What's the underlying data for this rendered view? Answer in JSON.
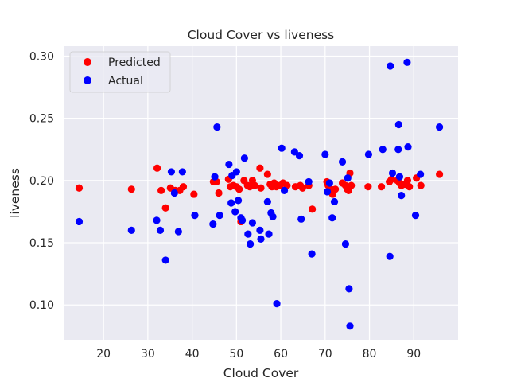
{
  "chart_data": {
    "type": "scatter",
    "title": "Cloud Cover vs liveness",
    "xlabel": "Cloud Cover",
    "ylabel": "liveness",
    "xlim": [
      11,
      100
    ],
    "ylim": [
      0.072,
      0.308
    ],
    "xticks": [
      "20",
      "30",
      "40",
      "50",
      "60",
      "70",
      "80",
      "90"
    ],
    "yticks": [
      "0.10",
      "0.15",
      "0.20",
      "0.25",
      "0.30"
    ],
    "grid": true,
    "legend_position": "top-left",
    "background": "#eaeaf2",
    "series": [
      {
        "name": "Predicted",
        "color": "#ff0000",
        "points": [
          [
            14.5,
            0.194
          ],
          [
            26.3,
            0.193
          ],
          [
            32.1,
            0.21
          ],
          [
            33.0,
            0.192
          ],
          [
            34.0,
            0.178
          ],
          [
            35.1,
            0.194
          ],
          [
            36.2,
            0.192
          ],
          [
            37.2,
            0.192
          ],
          [
            38.0,
            0.195
          ],
          [
            40.4,
            0.189
          ],
          [
            44.8,
            0.199
          ],
          [
            45.5,
            0.199
          ],
          [
            46.0,
            0.19
          ],
          [
            48.2,
            0.201
          ],
          [
            48.6,
            0.195
          ],
          [
            49.3,
            0.196
          ],
          [
            50.0,
            0.195
          ],
          [
            50.6,
            0.193
          ],
          [
            51.0,
            0.167
          ],
          [
            51.7,
            0.2
          ],
          [
            52.5,
            0.196
          ],
          [
            53.0,
            0.195
          ],
          [
            53.6,
            0.2
          ],
          [
            54.1,
            0.196
          ],
          [
            55.3,
            0.21
          ],
          [
            55.5,
            0.194
          ],
          [
            57.0,
            0.205
          ],
          [
            57.6,
            0.197
          ],
          [
            58.0,
            0.195
          ],
          [
            58.5,
            0.198
          ],
          [
            59.0,
            0.195
          ],
          [
            59.8,
            0.196
          ],
          [
            60.5,
            0.198
          ],
          [
            61.4,
            0.196
          ],
          [
            63.3,
            0.195
          ],
          [
            64.4,
            0.196
          ],
          [
            64.9,
            0.194
          ],
          [
            66.3,
            0.196
          ],
          [
            67.1,
            0.177
          ],
          [
            70.4,
            0.199
          ],
          [
            70.7,
            0.196
          ],
          [
            71.3,
            0.193
          ],
          [
            71.7,
            0.189
          ],
          [
            72.3,
            0.193
          ],
          [
            73.9,
            0.198
          ],
          [
            74.6,
            0.196
          ],
          [
            75.0,
            0.193
          ],
          [
            75.3,
            0.192
          ],
          [
            75.6,
            0.206
          ],
          [
            75.9,
            0.196
          ],
          [
            79.7,
            0.195
          ],
          [
            82.7,
            0.195
          ],
          [
            84.5,
            0.199
          ],
          [
            85.0,
            0.201
          ],
          [
            86.3,
            0.2
          ],
          [
            86.8,
            0.198
          ],
          [
            87.2,
            0.196
          ],
          [
            88.0,
            0.197
          ],
          [
            88.6,
            0.2
          ],
          [
            89.0,
            0.195
          ],
          [
            90.6,
            0.202
          ],
          [
            91.6,
            0.196
          ],
          [
            95.8,
            0.205
          ]
        ]
      },
      {
        "name": "Actual",
        "color": "#0000ff",
        "points": [
          [
            14.5,
            0.167
          ],
          [
            26.3,
            0.16
          ],
          [
            32.0,
            0.168
          ],
          [
            32.8,
            0.16
          ],
          [
            34.0,
            0.136
          ],
          [
            35.3,
            0.207
          ],
          [
            36.0,
            0.19
          ],
          [
            36.9,
            0.159
          ],
          [
            37.8,
            0.207
          ],
          [
            40.6,
            0.172
          ],
          [
            44.7,
            0.165
          ],
          [
            45.1,
            0.203
          ],
          [
            45.6,
            0.243
          ],
          [
            46.2,
            0.172
          ],
          [
            48.3,
            0.213
          ],
          [
            48.8,
            0.182
          ],
          [
            49.0,
            0.204
          ],
          [
            49.7,
            0.175
          ],
          [
            50.0,
            0.207
          ],
          [
            50.4,
            0.184
          ],
          [
            51.0,
            0.17
          ],
          [
            51.3,
            0.168
          ],
          [
            51.8,
            0.218
          ],
          [
            52.6,
            0.157
          ],
          [
            53.1,
            0.149
          ],
          [
            53.6,
            0.166
          ],
          [
            55.3,
            0.16
          ],
          [
            55.5,
            0.153
          ],
          [
            57.0,
            0.183
          ],
          [
            57.3,
            0.157
          ],
          [
            57.8,
            0.174
          ],
          [
            58.2,
            0.171
          ],
          [
            59.1,
            0.101
          ],
          [
            60.2,
            0.226
          ],
          [
            60.8,
            0.192
          ],
          [
            63.1,
            0.223
          ],
          [
            64.2,
            0.22
          ],
          [
            64.6,
            0.169
          ],
          [
            66.3,
            0.199
          ],
          [
            67.0,
            0.141
          ],
          [
            70.0,
            0.221
          ],
          [
            70.5,
            0.191
          ],
          [
            71.0,
            0.198
          ],
          [
            71.6,
            0.17
          ],
          [
            72.1,
            0.183
          ],
          [
            73.9,
            0.215
          ],
          [
            74.6,
            0.149
          ],
          [
            75.1,
            0.202
          ],
          [
            75.4,
            0.113
          ],
          [
            75.6,
            0.083
          ],
          [
            79.8,
            0.221
          ],
          [
            83.0,
            0.225
          ],
          [
            84.6,
            0.139
          ],
          [
            84.7,
            0.292
          ],
          [
            85.2,
            0.206
          ],
          [
            86.5,
            0.225
          ],
          [
            86.6,
            0.245
          ],
          [
            86.8,
            0.203
          ],
          [
            87.2,
            0.188
          ],
          [
            88.5,
            0.295
          ],
          [
            88.7,
            0.227
          ],
          [
            90.4,
            0.172
          ],
          [
            91.5,
            0.205
          ],
          [
            95.8,
            0.243
          ]
        ]
      }
    ]
  }
}
